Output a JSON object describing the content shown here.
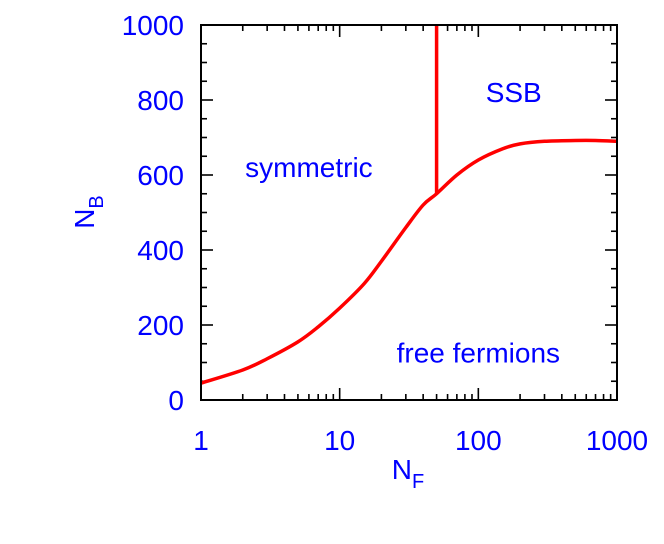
{
  "chart_data": {
    "type": "line",
    "xscale": "log",
    "xlim": [
      1,
      1000
    ],
    "ylim": [
      0,
      1000
    ],
    "x_ticks": [
      1,
      10,
      100,
      1000
    ],
    "x_tick_labels": [
      "1",
      "10",
      "100",
      "1000"
    ],
    "y_ticks": [
      0,
      200,
      400,
      600,
      800,
      1000
    ],
    "y_tick_labels": [
      "0",
      "200",
      "400",
      "600",
      "800",
      "1000"
    ],
    "xlabel": {
      "main": "N",
      "sub": "F"
    },
    "ylabel": {
      "main": "N",
      "sub": "B"
    },
    "grid": false,
    "colors": {
      "text": "#0000ff",
      "line": "#ff0000",
      "axis": "#000000"
    },
    "series": [
      {
        "x": [
          1,
          2,
          3,
          5,
          7,
          10,
          15,
          20,
          30,
          40,
          50,
          70,
          100,
          150,
          200,
          300,
          500,
          700,
          1000
        ],
        "y": [
          45,
          80,
          110,
          155,
          195,
          245,
          310,
          370,
          460,
          520,
          550,
          600,
          640,
          670,
          683,
          690,
          692,
          692,
          690
        ]
      },
      {
        "x": [
          50,
          50
        ],
        "y": [
          550,
          1000
        ]
      }
    ],
    "annotations": [
      {
        "text": "symmetric",
        "x": 6,
        "y": 595
      },
      {
        "text": "SSB",
        "x": 180,
        "y": 795
      },
      {
        "text": "free fermions",
        "x": 100,
        "y": 100
      }
    ]
  }
}
